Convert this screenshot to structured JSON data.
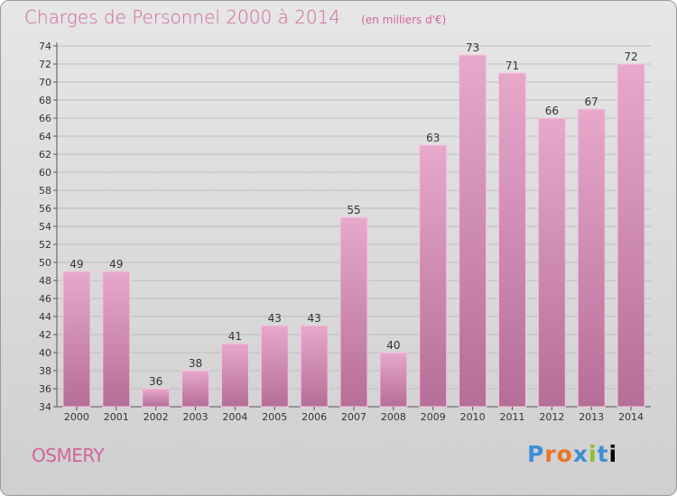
{
  "header": {
    "title": "Charges de Personnel 2000 à 2014",
    "unit": "(en milliers d'€)"
  },
  "footer": {
    "commune": "OSMERY",
    "logo_text": "Proxiti"
  },
  "colors": {
    "title": "#d0669b",
    "bar_top": "#e7a8cc",
    "bar_bottom": "#b56e97",
    "background": "#dcdcdc"
  },
  "chart_data": {
    "type": "bar",
    "title": "Charges de Personnel 2000 à 2014",
    "subtitle": "(en milliers d'€)",
    "xlabel": "",
    "ylabel": "",
    "categories": [
      "2000",
      "2001",
      "2002",
      "2003",
      "2004",
      "2005",
      "2006",
      "2007",
      "2008",
      "2009",
      "2010",
      "2011",
      "2012",
      "2013",
      "2014"
    ],
    "values": [
      49,
      49,
      36,
      38,
      41,
      43,
      43,
      55,
      40,
      63,
      73,
      71,
      66,
      67,
      72
    ],
    "ylim": [
      34,
      74
    ],
    "ytick_step": 2,
    "grid": "horizontal",
    "data_labels": true
  }
}
